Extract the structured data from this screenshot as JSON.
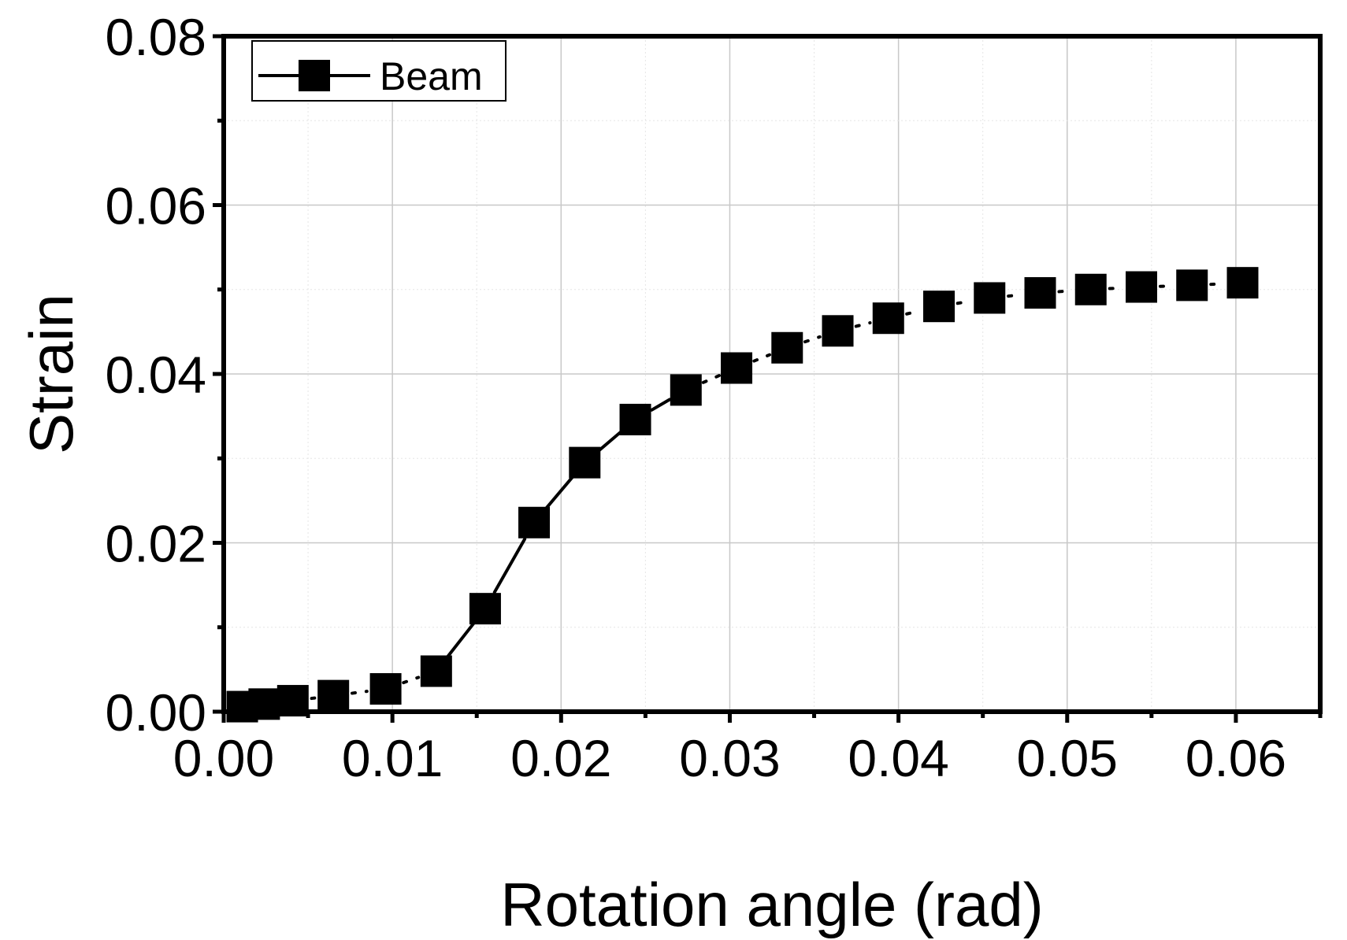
{
  "chart_data": {
    "type": "line",
    "xlabel": "Rotation angle (rad)",
    "ylabel": "Strain",
    "xlim": [
      0.0,
      0.065
    ],
    "ylim": [
      0.0,
      0.08
    ],
    "xticks": [
      "0.00",
      "0.01",
      "0.02",
      "0.03",
      "0.04",
      "0.05",
      "0.06"
    ],
    "yticks": [
      "0.00",
      "0.02",
      "0.04",
      "0.06",
      "0.08"
    ],
    "grid": true,
    "legend_position": "top-left",
    "series": [
      {
        "name": "Beam",
        "color": "#000000",
        "marker": "square",
        "x": [
          0.0011,
          0.0024,
          0.0041,
          0.0065,
          0.0096,
          0.0126,
          0.0155,
          0.0184,
          0.0214,
          0.0244,
          0.0274,
          0.0304,
          0.0334,
          0.0364,
          0.0394,
          0.0424,
          0.0454,
          0.0484,
          0.0514,
          0.0544,
          0.0574,
          0.0604
        ],
        "y": [
          0.0006,
          0.0009,
          0.0013,
          0.0019,
          0.0027,
          0.0048,
          0.0122,
          0.0224,
          0.0295,
          0.0346,
          0.0381,
          0.0407,
          0.0431,
          0.0451,
          0.0466,
          0.048,
          0.049,
          0.0496,
          0.05,
          0.0503,
          0.0505,
          0.0508
        ]
      }
    ]
  }
}
